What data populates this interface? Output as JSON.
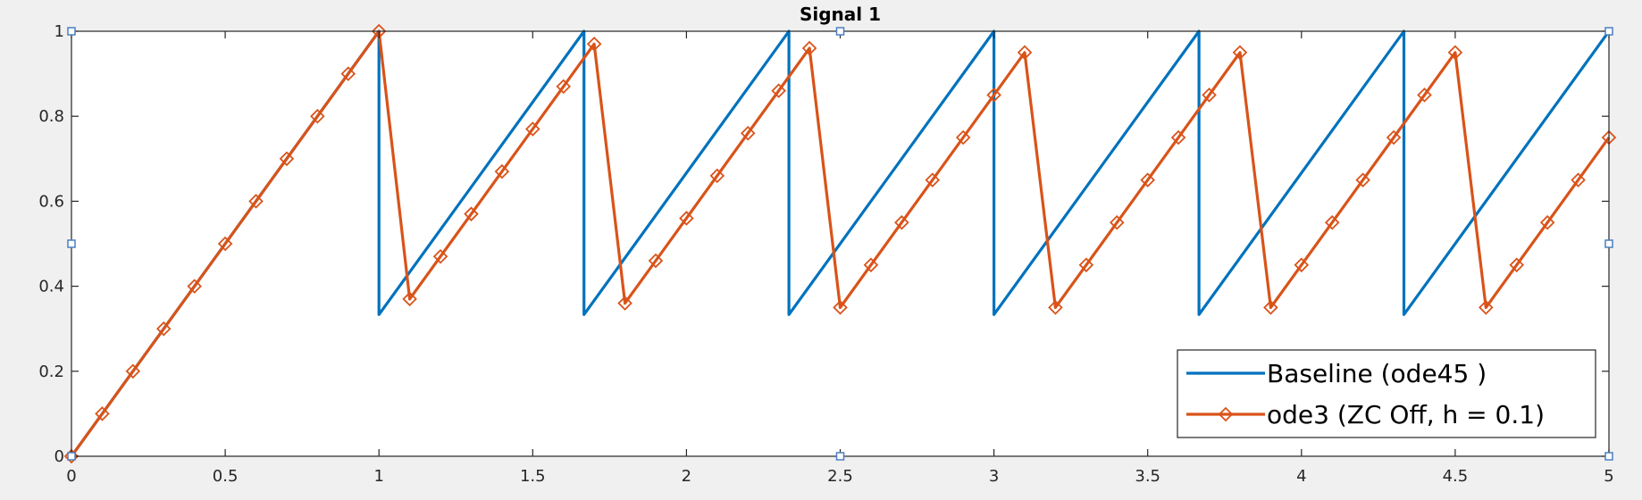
{
  "chart_data": {
    "type": "line",
    "title": "Signal 1",
    "xlabel": "",
    "ylabel": "",
    "xlim": [
      0,
      5
    ],
    "ylim": [
      0,
      1
    ],
    "xticks": [
      0,
      0.5,
      1,
      1.5,
      2,
      2.5,
      3,
      3.5,
      4,
      4.5,
      5
    ],
    "xtick_labels": [
      "0",
      "0.5",
      "1",
      "1.5",
      "2",
      "2.5",
      "3",
      "3.5",
      "4",
      "4.5",
      "5"
    ],
    "yticks": [
      0,
      0.2,
      0.4,
      0.6,
      0.8,
      1
    ],
    "ytick_labels": [
      "0",
      "0.2",
      "0.4",
      "0.6",
      "0.8",
      "1"
    ],
    "grid": false,
    "legend_position": "bottom-right",
    "series": [
      {
        "name": "Baseline (ode45 )",
        "color": "#0072bd",
        "marker": "none",
        "x": [
          0,
          1,
          1,
          1.6667,
          1.6667,
          2.3333,
          2.3333,
          3,
          3,
          3.6667,
          3.6667,
          4.3333,
          4.3333,
          5
        ],
        "y": [
          0,
          1,
          0.3333,
          1,
          0.3333,
          1,
          0.3333,
          1,
          0.3333,
          1,
          0.3333,
          1,
          0.3333,
          1
        ]
      },
      {
        "name": "ode3 (ZC Off, h = 0.1)",
        "color": "#d95319",
        "marker": "diamond",
        "x": [
          0,
          0.1,
          0.2,
          0.3,
          0.4,
          0.5,
          0.6,
          0.7,
          0.8,
          0.9,
          1.0,
          1.1,
          1.2,
          1.3,
          1.4,
          1.5,
          1.6,
          1.7,
          1.8,
          1.9,
          2.0,
          2.1,
          2.2,
          2.3,
          2.4,
          2.5,
          2.6,
          2.7,
          2.8,
          2.9,
          3.0,
          3.1,
          3.2,
          3.3,
          3.4,
          3.5,
          3.6,
          3.7,
          3.8,
          3.9,
          4.0,
          4.1,
          4.2,
          4.3,
          4.4,
          4.5,
          4.6,
          4.7,
          4.8,
          4.9,
          5.0
        ],
        "y": [
          0,
          0.1,
          0.2,
          0.3,
          0.4,
          0.5,
          0.6,
          0.7,
          0.8,
          0.9,
          1.0,
          0.37,
          0.47,
          0.57,
          0.67,
          0.77,
          0.87,
          0.97,
          0.36,
          0.46,
          0.56,
          0.66,
          0.76,
          0.86,
          0.96,
          0.35,
          0.45,
          0.55,
          0.65,
          0.75,
          0.85,
          0.95,
          0.35,
          0.45,
          0.55,
          0.65,
          0.75,
          0.85,
          0.95,
          0.35,
          0.45,
          0.55,
          0.65,
          0.75,
          0.85,
          0.95,
          0.35,
          0.45,
          0.55,
          0.65,
          0.75
        ]
      }
    ]
  }
}
